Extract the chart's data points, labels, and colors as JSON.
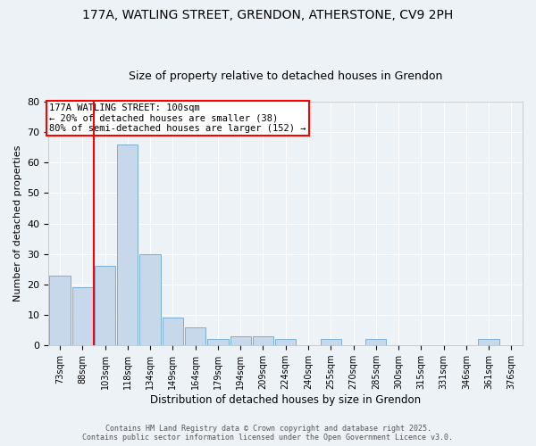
{
  "title1": "177A, WATLING STREET, GRENDON, ATHERSTONE, CV9 2PH",
  "title2": "Size of property relative to detached houses in Grendon",
  "xlabel": "Distribution of detached houses by size in Grendon",
  "ylabel": "Number of detached properties",
  "categories": [
    "73sqm",
    "88sqm",
    "103sqm",
    "118sqm",
    "134sqm",
    "149sqm",
    "164sqm",
    "179sqm",
    "194sqm",
    "209sqm",
    "224sqm",
    "240sqm",
    "255sqm",
    "270sqm",
    "285sqm",
    "300sqm",
    "315sqm",
    "331sqm",
    "346sqm",
    "361sqm",
    "376sqm"
  ],
  "values": [
    23,
    19,
    26,
    66,
    30,
    9,
    6,
    2,
    3,
    3,
    2,
    0,
    2,
    0,
    2,
    0,
    0,
    0,
    0,
    2,
    0
  ],
  "bar_color": "#c8d8eb",
  "bar_edge_color": "#7aafd4",
  "red_line_x": 1.5,
  "annotation_text": "177A WATLING STREET: 100sqm\n← 20% of detached houses are smaller (38)\n80% of semi-detached houses are larger (152) →",
  "annotation_box_color": "white",
  "annotation_box_edge": "red",
  "footer1": "Contains HM Land Registry data © Crown copyright and database right 2025.",
  "footer2": "Contains public sector information licensed under the Open Government Licence v3.0.",
  "ylim": [
    0,
    80
  ],
  "yticks": [
    0,
    10,
    20,
    30,
    40,
    50,
    60,
    70,
    80
  ],
  "background_color": "#edf2f7",
  "grid_color": "#ffffff",
  "title_fontsize": 10,
  "subtitle_fontsize": 9
}
